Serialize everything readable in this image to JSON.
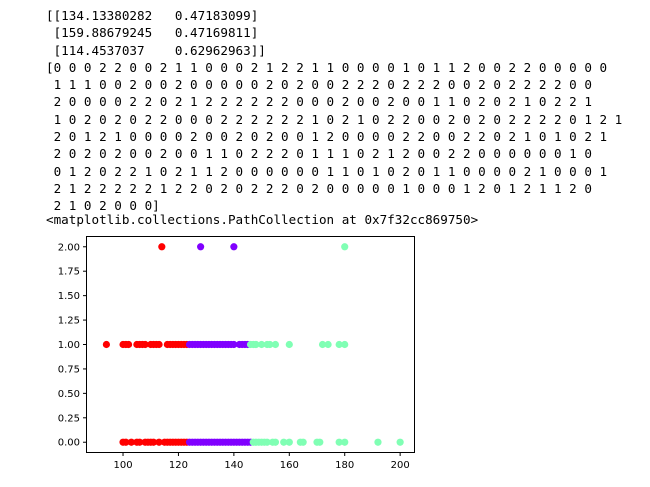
{
  "output": {
    "centers_lines": [
      "[[134.13380282   0.47183099]",
      " [159.88679245   0.47169811]",
      " [114.4537037    0.62962963]]"
    ],
    "labels_lines": [
      "[0 0 0 2 2 0 0 2 1 1 0 0 0 2 1 2 2 1 1 0 0 0 0 1 0 1 1 2 0 0 2 2 0 0 0 0 0",
      " 1 1 1 0 0 2 0 0 2 0 0 0 0 0 2 0 2 0 0 2 2 2 0 2 2 2 0 0 2 0 2 2 2 2 0 0",
      " 2 0 0 0 0 2 2 0 2 1 2 2 2 2 2 2 0 0 0 2 0 0 2 0 0 1 1 0 2 0 2 1 0 2 2 1",
      " 1 0 2 0 2 0 2 2 0 0 0 2 2 2 2 2 2 1 0 2 1 0 2 2 0 0 2 0 2 0 2 2 2 2 0 1 2 1",
      " 2 0 1 2 1 0 0 0 0 2 0 0 2 0 2 0 0 1 2 0 0 0 0 2 2 0 0 2 2 0 2 1 0 1 0 2 1",
      " 2 0 2 0 2 0 0 2 0 0 1 1 0 2 2 2 0 1 1 1 0 2 1 2 0 0 2 2 0 0 0 0 0 0 1 0",
      " 0 1 2 0 2 2 1 0 2 1 1 2 0 0 0 0 0 0 1 1 0 1 0 2 0 1 1 0 0 0 0 2 1 0 0 0 1",
      " 2 1 2 2 2 2 2 1 2 2 0 2 0 2 2 2 0 2 0 0 0 0 0 1 0 0 0 1 2 0 1 2 1 1 2 0",
      " 2 1 0 2 0 0 0]"
    ],
    "repr": "<matplotlib.collections.PathCollection at 0x7f32cc869750>"
  },
  "chart_data": {
    "type": "scatter",
    "title": "",
    "xlabel": "",
    "ylabel": "",
    "xlim": [
      87,
      205
    ],
    "ylim": [
      -0.1,
      2.1
    ],
    "xticks": [
      100,
      120,
      140,
      160,
      180,
      200
    ],
    "yticks": [
      0.0,
      0.25,
      0.5,
      0.75,
      1.0,
      1.25,
      1.5,
      1.75,
      2.0
    ],
    "ytick_labels": [
      "0.00",
      "0.25",
      "0.50",
      "0.75",
      "1.00",
      "1.25",
      "1.50",
      "1.75",
      "2.00"
    ],
    "grid": false,
    "legend": "none",
    "series": [
      {
        "color": "#ff0000",
        "points": [
          [
            94,
            1
          ],
          [
            100,
            1
          ],
          [
            101,
            1
          ],
          [
            102,
            1
          ],
          [
            105,
            1
          ],
          [
            106,
            1
          ],
          [
            107,
            1
          ],
          [
            108,
            1
          ],
          [
            110,
            1
          ],
          [
            111,
            1
          ],
          [
            112,
            1
          ],
          [
            113,
            1
          ],
          [
            116,
            1
          ],
          [
            117,
            1
          ],
          [
            118,
            1
          ],
          [
            119,
            1
          ],
          [
            120,
            1
          ],
          [
            121,
            1
          ],
          [
            122,
            1
          ],
          [
            123,
            1
          ],
          [
            100,
            0
          ],
          [
            101,
            0
          ],
          [
            103,
            0
          ],
          [
            105,
            0
          ],
          [
            106,
            0
          ],
          [
            108,
            0
          ],
          [
            109,
            0
          ],
          [
            110,
            0
          ],
          [
            111,
            0
          ],
          [
            113,
            0
          ],
          [
            115,
            0
          ],
          [
            116,
            0
          ],
          [
            117,
            0
          ],
          [
            118,
            0
          ],
          [
            119,
            0
          ],
          [
            120,
            0
          ],
          [
            121,
            0
          ],
          [
            122,
            0
          ],
          [
            123,
            0
          ],
          [
            114,
            2
          ]
        ]
      },
      {
        "color": "#8000ff",
        "points": [
          [
            124,
            1
          ],
          [
            125,
            1
          ],
          [
            126,
            1
          ],
          [
            127,
            1
          ],
          [
            128,
            1
          ],
          [
            129,
            1
          ],
          [
            130,
            1
          ],
          [
            131,
            1
          ],
          [
            132,
            1
          ],
          [
            133,
            1
          ],
          [
            134,
            1
          ],
          [
            135,
            1
          ],
          [
            136,
            1
          ],
          [
            137,
            1
          ],
          [
            138,
            1
          ],
          [
            139,
            1
          ],
          [
            140,
            1
          ],
          [
            142,
            1
          ],
          [
            143,
            1
          ],
          [
            144,
            1
          ],
          [
            145,
            1
          ],
          [
            124,
            0
          ],
          [
            125,
            0
          ],
          [
            126,
            0
          ],
          [
            127,
            0
          ],
          [
            128,
            0
          ],
          [
            129,
            0
          ],
          [
            130,
            0
          ],
          [
            131,
            0
          ],
          [
            132,
            0
          ],
          [
            133,
            0
          ],
          [
            134,
            0
          ],
          [
            135,
            0
          ],
          [
            136,
            0
          ],
          [
            137,
            0
          ],
          [
            138,
            0
          ],
          [
            139,
            0
          ],
          [
            140,
            0
          ],
          [
            141,
            0
          ],
          [
            142,
            0
          ],
          [
            143,
            0
          ],
          [
            144,
            0
          ],
          [
            145,
            0
          ],
          [
            146,
            0
          ],
          [
            128,
            2
          ],
          [
            140,
            2
          ]
        ]
      },
      {
        "color": "#80ffb4",
        "points": [
          [
            146,
            1
          ],
          [
            147,
            1
          ],
          [
            148,
            1
          ],
          [
            150,
            1
          ],
          [
            152,
            1
          ],
          [
            153,
            1
          ],
          [
            155,
            1
          ],
          [
            160,
            1
          ],
          [
            172,
            1
          ],
          [
            174,
            1
          ],
          [
            178,
            1
          ],
          [
            180,
            1
          ],
          [
            147,
            0
          ],
          [
            148,
            0
          ],
          [
            149,
            0
          ],
          [
            150,
            0
          ],
          [
            151,
            0
          ],
          [
            152,
            0
          ],
          [
            154,
            0
          ],
          [
            155,
            0
          ],
          [
            158,
            0
          ],
          [
            160,
            0
          ],
          [
            164,
            0
          ],
          [
            165,
            0
          ],
          [
            170,
            0
          ],
          [
            171,
            0
          ],
          [
            178,
            0
          ],
          [
            180,
            0
          ],
          [
            192,
            0
          ],
          [
            200,
            0
          ],
          [
            180,
            2
          ]
        ]
      }
    ]
  }
}
